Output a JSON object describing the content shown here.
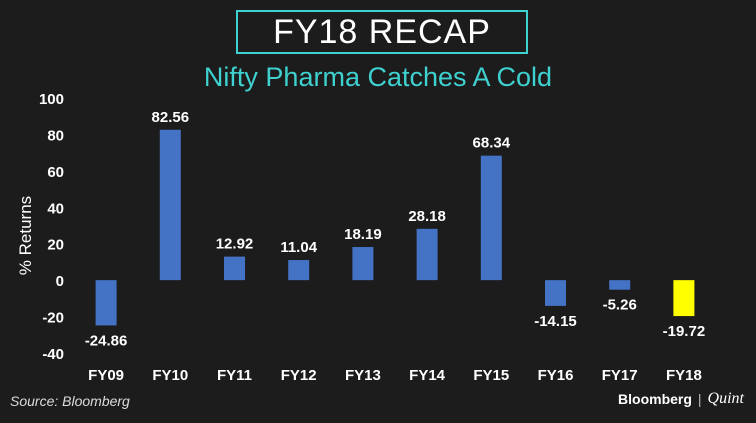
{
  "header": {
    "title": "FY18 RECAP"
  },
  "chart_data": {
    "type": "bar",
    "title": "Nifty Pharma Catches A Cold",
    "ylabel": "% Returns",
    "xlabel": "",
    "categories": [
      "FY09",
      "FY10",
      "FY11",
      "FY12",
      "FY13",
      "FY14",
      "FY15",
      "FY16",
      "FY17",
      "FY18"
    ],
    "values": [
      -24.86,
      82.56,
      12.92,
      11.04,
      18.19,
      28.18,
      68.34,
      -14.15,
      -5.26,
      -19.72
    ],
    "value_labels": [
      "-24.86",
      "82.56",
      "12.92",
      "11.04",
      "18.19",
      "28.18",
      "68.34",
      "-14.15",
      "-5.26",
      "-19.72"
    ],
    "ylim": [
      -40,
      100
    ],
    "yticks": [
      "100",
      "80",
      "60",
      "40",
      "20",
      "0",
      "-20",
      "-40"
    ],
    "grid": false,
    "colors": {
      "bar": "#4472c4",
      "highlight": "#ffff00",
      "highlight_index": 9,
      "text": "#ffffff",
      "accent": "#3fd1cf"
    }
  },
  "footer": {
    "source": "Source: Bloomberg",
    "brand_primary": "Bloomberg",
    "brand_separator": "|",
    "brand_secondary": "Quint"
  }
}
